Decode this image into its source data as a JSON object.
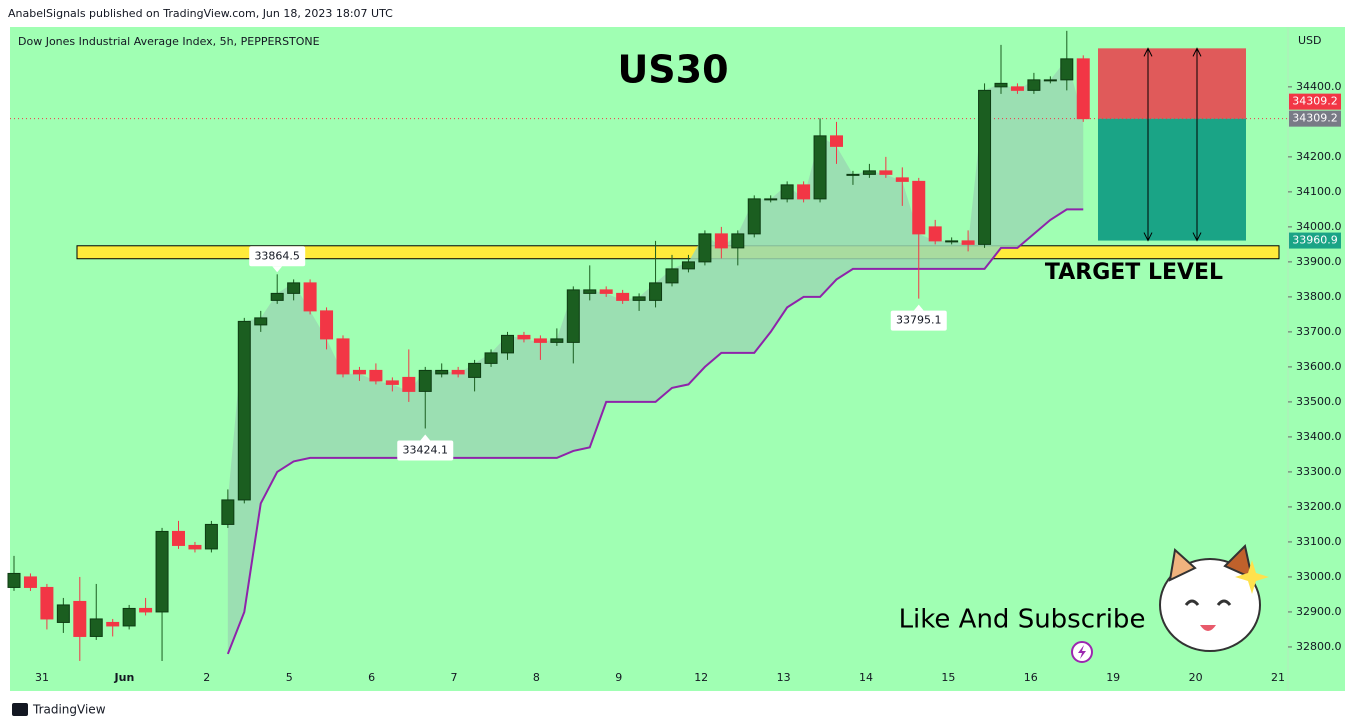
{
  "header": "AnabelSignals published on TradingView.com, Jun 18, 2023 18:07 UTC",
  "footer": "TradingView",
  "chart_data": {
    "type": "candlestick",
    "symbol": "Dow Jones Industrial Average Index, 5h, PEPPERSTONE",
    "title": "US30",
    "currency": "USD",
    "target_label": "TARGET LEVEL",
    "cta": "Like And Subscribe",
    "up_color": "#1b5e20",
    "down_color": "#f23645",
    "open": [
      32970,
      33000,
      32970,
      32870,
      32930,
      32830,
      32870,
      32860,
      32910,
      32900,
      33130,
      33090,
      33080,
      33150,
      33220,
      33720,
      33790,
      33810,
      33840,
      33760,
      33680,
      33590,
      33590,
      33560,
      33570,
      33530,
      33580,
      33590,
      33570,
      33610,
      33640,
      33690,
      33680,
      33670,
      33670,
      33810,
      33820,
      33810,
      33790,
      33790,
      33840,
      33880,
      33900,
      33980,
      33940,
      33980,
      34080,
      34080,
      34120,
      34080,
      34260,
      34150,
      34150,
      34160,
      34140,
      34130,
      34000,
      33960,
      33960,
      33950,
      34400,
      34400,
      34390,
      34420,
      34420,
      34480
    ],
    "high": [
      33060,
      33010,
      32980,
      32940,
      33000,
      32980,
      32880,
      32920,
      32940,
      33140,
      33160,
      33100,
      33160,
      33250,
      33740,
      33760,
      33864.5,
      33850,
      33850,
      33770,
      33690,
      33600,
      33610,
      33570,
      33650,
      33600,
      33610,
      33600,
      33620,
      33650,
      33700,
      33700,
      33690,
      33710,
      33830,
      33890,
      33830,
      33820,
      33810,
      33960,
      33920,
      33920,
      33990,
      34000,
      33990,
      34090,
      34090,
      34130,
      34130,
      34310,
      34300,
      34160,
      34180,
      34200,
      34170,
      34140,
      34020,
      33970,
      33990,
      34410,
      34520,
      34410,
      34440,
      34430,
      34560,
      34490
    ],
    "low": [
      32960,
      32960,
      32850,
      32840,
      32760,
      32820,
      32830,
      32850,
      32890,
      32760,
      33080,
      33070,
      33070,
      33140,
      33210,
      33700,
      33780,
      33790,
      33750,
      33650,
      33570,
      33560,
      33550,
      33530,
      33500,
      33424.1,
      33570,
      33570,
      33530,
      33600,
      33620,
      33670,
      33620,
      33660,
      33610,
      33790,
      33800,
      33780,
      33760,
      33770,
      33830,
      33870,
      33890,
      33910,
      33890,
      33970,
      34070,
      34070,
      34070,
      34070,
      34180,
      34120,
      34140,
      34140,
      34060,
      33795.1,
      33950,
      33950,
      33930,
      33940,
      34380,
      34380,
      34380,
      34410,
      34390,
      34300
    ],
    "close": [
      33010,
      32970,
      32880,
      32920,
      32830,
      32880,
      32860,
      32910,
      32900,
      33130,
      33090,
      33080,
      33150,
      33220,
      33730,
      33740,
      33810,
      33840,
      33760,
      33680,
      33580,
      33580,
      33560,
      33550,
      33530,
      33590,
      33590,
      33580,
      33610,
      33640,
      33690,
      33680,
      33670,
      33680,
      33820,
      33820,
      33810,
      33790,
      33800,
      33840,
      33880,
      33900,
      33980,
      33940,
      33980,
      34080,
      34080,
      34120,
      34080,
      34260,
      34230,
      34150,
      34160,
      34150,
      34130,
      33980,
      33960,
      33960,
      33950,
      34390,
      34410,
      34390,
      34420,
      34420,
      34480,
      34309.2
    ],
    "trend_line": {
      "color": "#8e24aa",
      "values": [
        null,
        null,
        null,
        null,
        null,
        null,
        null,
        null,
        null,
        null,
        null,
        null,
        null,
        32780,
        32900,
        33210,
        33300,
        33330,
        33340,
        33340,
        33340,
        33340,
        33340,
        33340,
        33340,
        33340,
        33340,
        33340,
        33340,
        33340,
        33340,
        33340,
        33340,
        33340,
        33360,
        33370,
        33500,
        33500,
        33500,
        33500,
        33540,
        33550,
        33600,
        33640,
        33640,
        33640,
        33700,
        33770,
        33800,
        33800,
        33850,
        33880,
        33880,
        33880,
        33880,
        33880,
        33880,
        33880,
        33880,
        33880,
        33940,
        33940,
        33980,
        34020,
        34050,
        34050
      ]
    },
    "zone": [
      33909,
      33946
    ],
    "zone_color": "#ffeb3b",
    "target": 33960.9,
    "stop": 34510,
    "date_labels": [
      "31",
      "Jun",
      "2",
      "5",
      "6",
      "7",
      "8",
      "9",
      "12",
      "13",
      "14",
      "15",
      "16",
      "19",
      "20",
      "21"
    ],
    "ylim": [
      32677,
      34571
    ],
    "yticks": [
      {
        "value": 34400,
        "label": "34400.0"
      },
      {
        "value": 34200,
        "label": "34200.0"
      },
      {
        "value": 34100,
        "label": "34100.0"
      },
      {
        "value": 34000,
        "label": "34000.0"
      },
      {
        "value": 33900,
        "label": "33900.0"
      },
      {
        "value": 33800,
        "label": "33800.0"
      },
      {
        "value": 33700,
        "label": "33700.0"
      },
      {
        "value": 33600,
        "label": "33600.0"
      },
      {
        "value": 33500,
        "label": "33500.0"
      },
      {
        "value": 33400,
        "label": "33400.0"
      },
      {
        "value": 33300,
        "label": "33300.0"
      },
      {
        "value": 33200,
        "label": "33200.0"
      },
      {
        "value": 33100,
        "label": "33100.0"
      },
      {
        "value": 33000,
        "label": "33000.0"
      },
      {
        "value": 32900,
        "label": "32900.0"
      },
      {
        "value": 32800,
        "label": "32800.0"
      }
    ]
  }
}
